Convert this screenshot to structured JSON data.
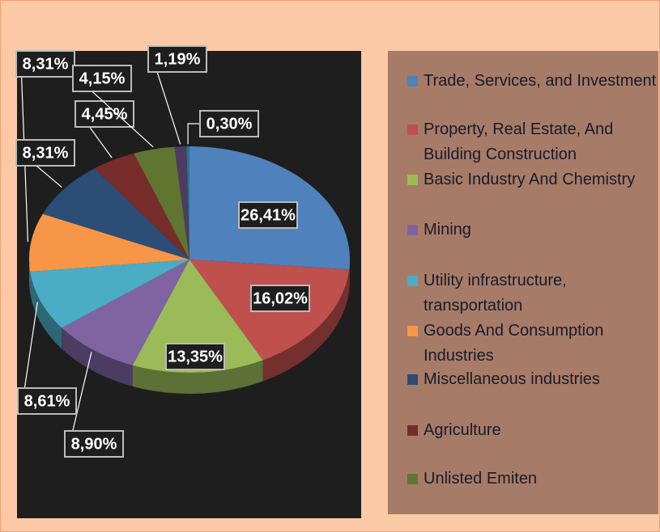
{
  "chart_data": {
    "type": "pie",
    "categories": [
      "Trade, Services, and Investment",
      "Property, Real Estate, And Building Construction",
      "Basic Industry And Chemistry",
      "Mining",
      "Utility infrastructure, transportation",
      "Goods And Consumption Industries",
      "Miscellaneous industries",
      "Agriculture",
      "Unlisted Emiten",
      null,
      null
    ],
    "values": [
      26.41,
      16.02,
      13.35,
      8.9,
      8.61,
      8.31,
      8.31,
      4.45,
      4.15,
      1.19,
      0.3
    ],
    "value_labels": [
      "26,41%",
      "16,02%",
      "13,35%",
      "8,90%",
      "8,61%",
      "8,31%",
      "8,31%",
      "4,45%",
      "4,15%",
      "1,19%",
      "0,30%"
    ],
    "colors": [
      "#4f81bd",
      "#c0504d",
      "#9bbb59",
      "#8064a2",
      "#4bacc6",
      "#f79646",
      "#2c4d75",
      "#772c2a",
      "#5f7530",
      "#4d3b62",
      "#27758a"
    ]
  }
}
